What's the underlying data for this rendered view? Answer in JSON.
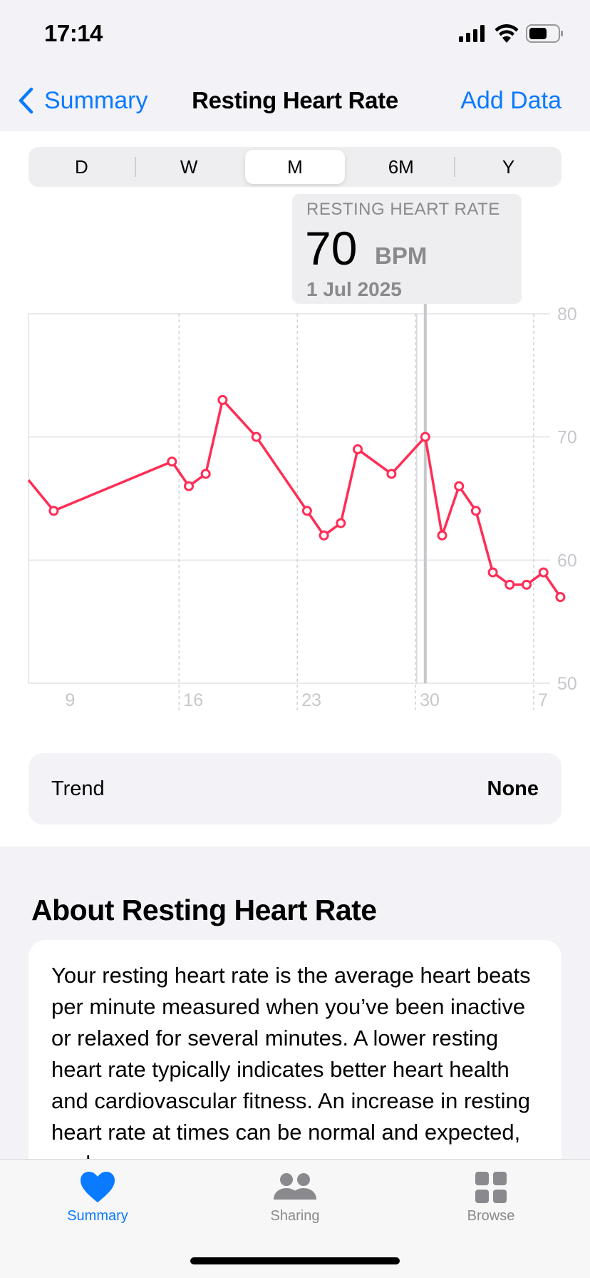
{
  "status_bar": {
    "time": "17:14"
  },
  "nav": {
    "back_label": "Summary",
    "title": "Resting Heart Rate",
    "add_label": "Add Data"
  },
  "segments": {
    "items": [
      "D",
      "W",
      "M",
      "6M",
      "Y"
    ],
    "selected": "M"
  },
  "tooltip": {
    "label": "RESTING HEART RATE",
    "value": "70",
    "unit": "BPM",
    "date": "1 Jul 2025"
  },
  "chart_data": {
    "type": "line",
    "title": "",
    "xlabel": "",
    "ylabel": "",
    "x_tick_labels": [
      "9",
      "16",
      "23",
      "30",
      "7"
    ],
    "y_tick_labels": [
      "80",
      "70",
      "60",
      "50"
    ],
    "ylim": [
      50,
      80
    ],
    "grid": true,
    "line_color": "#ff2d55",
    "points": [
      {
        "x": "2025-06-08",
        "y": 66.5
      },
      {
        "x": "2025-06-09",
        "y": 64
      },
      {
        "x": "2025-06-16",
        "y": 68
      },
      {
        "x": "2025-06-17",
        "y": 66
      },
      {
        "x": "2025-06-18",
        "y": 67
      },
      {
        "x": "2025-06-19",
        "y": 73
      },
      {
        "x": "2025-06-21",
        "y": 70
      },
      {
        "x": "2025-06-24",
        "y": 64
      },
      {
        "x": "2025-06-25",
        "y": 62
      },
      {
        "x": "2025-06-26",
        "y": 63
      },
      {
        "x": "2025-06-27",
        "y": 69
      },
      {
        "x": "2025-06-29",
        "y": 67
      },
      {
        "x": "2025-07-01",
        "y": 70
      },
      {
        "x": "2025-07-02",
        "y": 62
      },
      {
        "x": "2025-07-03",
        "y": 66
      },
      {
        "x": "2025-07-04",
        "y": 64
      },
      {
        "x": "2025-07-05",
        "y": 59
      },
      {
        "x": "2025-07-06",
        "y": 58
      },
      {
        "x": "2025-07-07",
        "y": 58
      },
      {
        "x": "2025-07-08",
        "y": 59
      },
      {
        "x": "2025-07-09",
        "y": 57
      }
    ],
    "selected_x": "2025-07-01"
  },
  "trend": {
    "label": "Trend",
    "value": "None"
  },
  "about": {
    "title": "About Resting Heart Rate",
    "text": "Your resting heart rate is the average heart beats per minute measured when you’ve been inactive or relaxed for several minutes. A lower resting heart rate typically indicates better heart health and cardiovascular fitness. An increase in resting heart rate at times can be normal and expected, such as"
  },
  "tabbar": {
    "items": [
      {
        "label": "Summary",
        "icon": "heart-icon"
      },
      {
        "label": "Sharing",
        "icon": "people-icon"
      },
      {
        "label": "Browse",
        "icon": "grid-icon"
      }
    ],
    "active": "Summary"
  }
}
